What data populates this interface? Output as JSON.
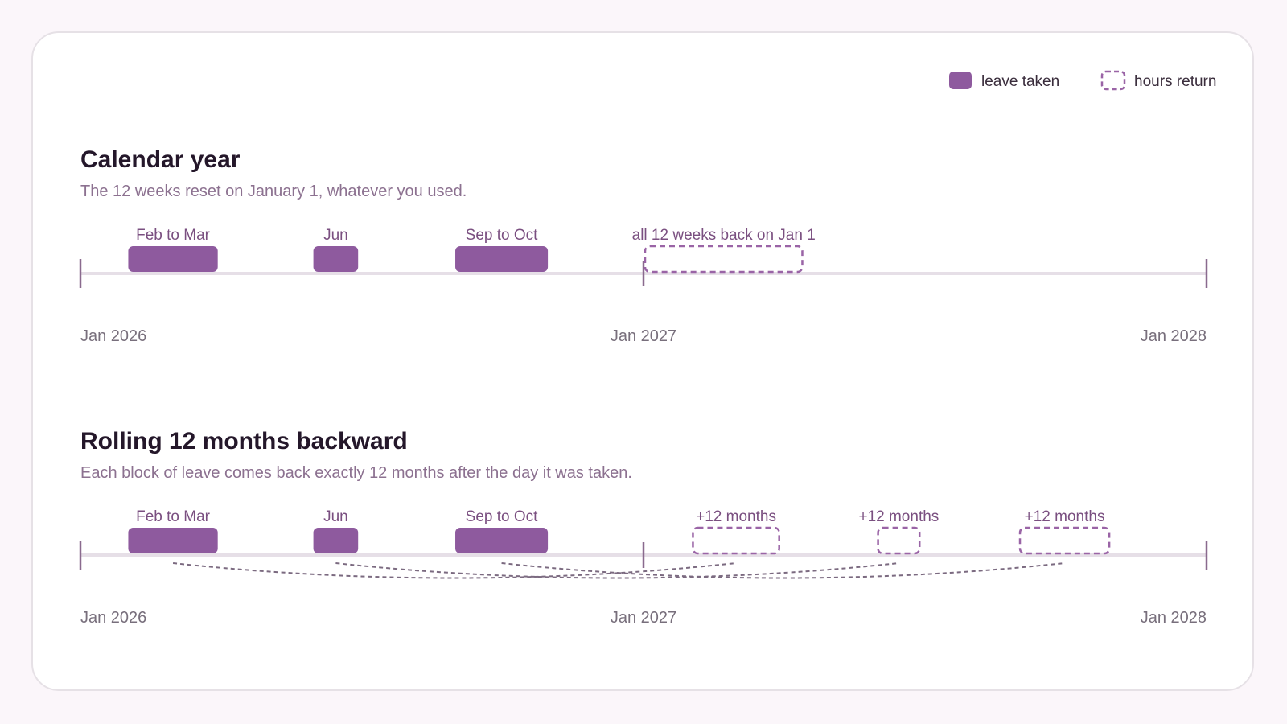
{
  "legend": {
    "taken_label": "leave taken",
    "return_label": "hours return"
  },
  "colors": {
    "taken": "#8e5a9e",
    "return_stroke": "#9a64a6",
    "timeline": "#e6dfe7",
    "tick": "#8a6a8e",
    "connector": "#7b6a80"
  },
  "panels": [
    {
      "title": "Calendar year",
      "subtitle": "The 12 weeks reset on January 1, whatever you used.",
      "timeline_start": "2026-01-01",
      "timeline_end": "2028-01-01",
      "axis_labels": [
        "Jan 2026",
        "Jan 2027",
        "Jan 2028"
      ],
      "taken": [
        {
          "label": "Feb to Mar",
          "start": "2026-02-01",
          "end": "2026-03-31"
        },
        {
          "label": "Jun",
          "start": "2026-06-01",
          "end": "2026-06-30"
        },
        {
          "label": "Sep to Oct",
          "start": "2026-09-01",
          "end": "2026-10-31"
        }
      ],
      "returns": [
        {
          "label": "all 12 weeks back on Jan 1",
          "start": "2027-01-01",
          "end": "2027-04-15"
        }
      ],
      "connectors": false
    },
    {
      "title": "Rolling 12 months backward",
      "subtitle": "Each block of leave comes back exactly 12 months after the day it was taken.",
      "timeline_start": "2026-01-01",
      "timeline_end": "2028-01-01",
      "axis_labels": [
        "Jan 2026",
        "Jan 2027",
        "Jan 2028"
      ],
      "taken": [
        {
          "label": "Feb to Mar",
          "start": "2026-02-01",
          "end": "2026-03-31"
        },
        {
          "label": "Jun",
          "start": "2026-06-01",
          "end": "2026-06-30"
        },
        {
          "label": "Sep to Oct",
          "start": "2026-09-01",
          "end": "2026-10-31"
        }
      ],
      "returns": [
        {
          "label": "+12 months",
          "start": "2027-02-01",
          "end": "2027-03-31"
        },
        {
          "label": "+12 months",
          "start": "2027-06-01",
          "end": "2027-06-30"
        },
        {
          "label": "+12 months",
          "start": "2027-09-01",
          "end": "2027-10-31"
        }
      ],
      "connectors": true
    }
  ]
}
